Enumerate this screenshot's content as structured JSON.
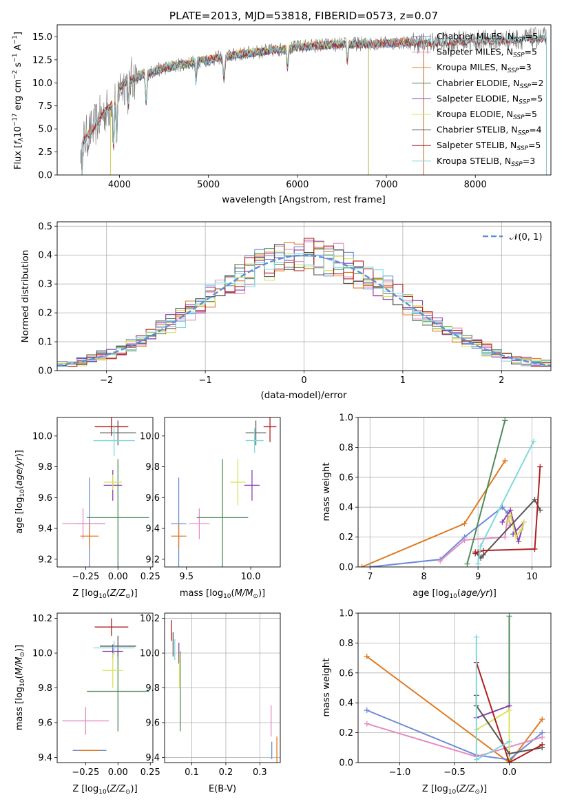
{
  "figure_title": "PLATE=2013, MJD=53818, FIBERID=0573, z=0.07",
  "colors": {
    "Chabrier MILES": "#6a8bd8",
    "Salpeter MILES": "#e58bbf",
    "Kroupa MILES": "#e07a22",
    "Chabrier ELODIE": "#4f8a5a",
    "Salpeter ELODIE": "#8a3fb0",
    "Kroupa ELODIE": "#d8e35a",
    "Chabrier STELIB": "#555555",
    "Salpeter STELIB": "#b01e1e",
    "Kroupa STELIB": "#7fd8dc",
    "data": "#7f7f7f",
    "normal": "#5a8fd6"
  },
  "chart_data": [
    {
      "type": "line",
      "title": "PLATE=2013, MJD=53818, FIBERID=0573, z=0.07",
      "xlabel": "wavelength [Angstrom, rest frame]",
      "ylabel": "Flux [f_λ 10^-17 erg cm^-2 s^-1 A^-1]",
      "xlim": [
        3300,
        8850
      ],
      "ylim": [
        0,
        16.3
      ],
      "xticks": [
        "4000",
        "5000",
        "6000",
        "7000",
        "8000"
      ],
      "yticks": [
        "0.0",
        "2.5",
        "5.0",
        "7.5",
        "10.0",
        "12.5",
        "15.0"
      ],
      "legend_position": "right",
      "series": [
        {
          "name": "Chabrier MILES, N_SSP=5",
          "label_main": "Chabrier MILES, N",
          "label_sub": "SSP",
          "label_tail": "=5",
          "range": [
            3580,
            7420
          ]
        },
        {
          "name": "Salpeter MILES, N_SSP=5",
          "label_main": "Salpeter MILES, N",
          "label_sub": "SSP",
          "label_tail": "=5",
          "range": [
            3580,
            7420
          ]
        },
        {
          "name": "Kroupa MILES, N_SSP=3",
          "label_main": "Kroupa MILES, N",
          "label_sub": "SSP",
          "label_tail": "=3",
          "range": [
            3580,
            7420
          ]
        },
        {
          "name": "Chabrier ELODIE, N_SSP=2",
          "label_main": "Chabrier ELODIE, N",
          "label_sub": "SSP",
          "label_tail": "=2",
          "range": [
            3900,
            6800
          ]
        },
        {
          "name": "Salpeter ELODIE, N_SSP=5",
          "label_main": "Salpeter ELODIE, N",
          "label_sub": "SSP",
          "label_tail": "=5",
          "range": [
            3900,
            6800
          ]
        },
        {
          "name": "Kroupa ELODIE, N_SSP=5",
          "label_main": "Kroupa ELODIE, N",
          "label_sub": "SSP",
          "label_tail": "=5",
          "range": [
            3900,
            6800
          ]
        },
        {
          "name": "Chabrier STELIB, N_SSP=4",
          "label_main": "Chabrier STELIB, N",
          "label_sub": "SSP",
          "label_tail": "=4",
          "range": [
            3580,
            8800
          ]
        },
        {
          "name": "Salpeter STELIB, N_SSP=5",
          "label_main": "Salpeter STELIB, N",
          "label_sub": "SSP",
          "label_tail": "=5",
          "range": [
            3580,
            8800
          ]
        },
        {
          "name": "Kroupa STELIB, N_SSP=3",
          "label_main": "Kroupa STELIB, N",
          "label_sub": "SSP",
          "label_tail": "=3",
          "range": [
            3580,
            8800
          ]
        }
      ],
      "continuum_x": [
        3580,
        3700,
        3800,
        3900,
        4000,
        4100,
        4300,
        4500,
        4800,
        5000,
        5200,
        5500,
        5800,
        6000,
        6300,
        6600,
        6900,
        7200,
        7500,
        7800,
        8100,
        8400,
        8800
      ],
      "continuum_y": [
        3.5,
        5.0,
        6.5,
        7.5,
        9.5,
        10.3,
        11.0,
        11.6,
        12.2,
        12.5,
        12.9,
        13.3,
        13.6,
        13.9,
        14.1,
        14.2,
        14.3,
        14.4,
        14.3,
        14.5,
        14.6,
        14.7,
        14.9
      ]
    },
    {
      "type": "line",
      "xlabel": "(data-model)/error",
      "ylabel": "Normed distribution",
      "xlim": [
        -2.5,
        2.5
      ],
      "ylim": [
        0,
        0.515
      ],
      "grid": true,
      "xticks": [
        "−2",
        "−1",
        "0",
        "1",
        "2"
      ],
      "yticks": [
        "0.0",
        "0.1",
        "0.2",
        "0.3",
        "0.4",
        "0.5"
      ],
      "legend_position": "top-right",
      "normal_label": "𝒩(0, 1)",
      "bin_width": 0.1
    },
    {
      "type": "scatter",
      "xlabel": "Z [log10(Z/Z⊙)]",
      "ylabel": "age [log10(age/yr)]",
      "xlim": [
        -0.47,
        0.27
      ],
      "ylim": [
        9.15,
        10.12
      ],
      "xticks": [
        "−0.25",
        "0.00",
        "0.25"
      ],
      "yticks": [
        "9.2",
        "9.4",
        "9.6",
        "9.8",
        "10.0"
      ],
      "points": [
        {
          "series": "Chabrier MILES",
          "x": -0.22,
          "y": 9.43,
          "xerr": 0.12,
          "yerr": 0.3
        },
        {
          "series": "Salpeter MILES",
          "x": -0.27,
          "y": 9.43,
          "xerr": 0.16,
          "yerr": 0.1
        },
        {
          "series": "Kroupa MILES",
          "x": -0.22,
          "y": 9.35,
          "xerr": 0.07,
          "yerr": 0.08
        },
        {
          "series": "Chabrier ELODIE",
          "x": 0.0,
          "y": 9.47,
          "xerr": 0.24,
          "yerr": 0.38
        },
        {
          "series": "Salpeter ELODIE",
          "x": -0.04,
          "y": 9.68,
          "xerr": 0.07,
          "yerr": 0.1
        },
        {
          "series": "Kroupa ELODIE",
          "x": -0.04,
          "y": 9.7,
          "xerr": 0.07,
          "yerr": 0.05
        },
        {
          "series": "Chabrier STELIB",
          "x": 0.0,
          "y": 10.02,
          "xerr": 0.14,
          "yerr": 0.08
        },
        {
          "series": "Salpeter STELIB",
          "x": -0.05,
          "y": 10.06,
          "xerr": 0.13,
          "yerr": 0.06
        },
        {
          "series": "Kroupa STELIB",
          "x": -0.03,
          "y": 9.97,
          "xerr": 0.16,
          "yerr": 0.1
        }
      ]
    },
    {
      "type": "scatter",
      "xlabel": "mass [log10(M/M⊙)]",
      "xlim": [
        9.33,
        10.23
      ],
      "ylim": [
        9.15,
        10.12
      ],
      "xticks": [
        "9.5",
        "10.0"
      ],
      "yticks": [
        "9.2",
        "9.4",
        "9.6",
        "9.8",
        "10.0"
      ],
      "points": [
        {
          "series": "Chabrier MILES",
          "x": 9.44,
          "y": 9.43,
          "xerr": 0.06,
          "yerr": 0.3
        },
        {
          "series": "Salpeter MILES",
          "x": 9.6,
          "y": 9.43,
          "xerr": 0.08,
          "yerr": 0.1
        },
        {
          "series": "Kroupa MILES",
          "x": 9.44,
          "y": 9.35,
          "xerr": 0.06,
          "yerr": 0.08
        },
        {
          "series": "Chabrier ELODIE",
          "x": 9.78,
          "y": 9.47,
          "xerr": 0.2,
          "yerr": 0.38
        },
        {
          "series": "Salpeter ELODIE",
          "x": 10.01,
          "y": 9.68,
          "xerr": 0.06,
          "yerr": 0.1
        },
        {
          "series": "Kroupa ELODIE",
          "x": 9.9,
          "y": 9.7,
          "xerr": 0.06,
          "yerr": 0.15
        },
        {
          "series": "Chabrier STELIB",
          "x": 10.04,
          "y": 10.02,
          "xerr": 0.08,
          "yerr": 0.08
        },
        {
          "series": "Salpeter STELIB",
          "x": 10.15,
          "y": 10.06,
          "xerr": 0.05,
          "yerr": 0.1
        },
        {
          "series": "Kroupa STELIB",
          "x": 10.03,
          "y": 9.97,
          "xerr": 0.07,
          "yerr": 0.08
        }
      ]
    },
    {
      "type": "line",
      "xlabel": "age [log10(age/yr)]",
      "ylabel": "mass weight",
      "xlim": [
        6.78,
        10.35
      ],
      "ylim": [
        0,
        1.0
      ],
      "grid": true,
      "xticks": [
        "7",
        "8",
        "9",
        "10"
      ],
      "yticks": [
        "0.0",
        "0.2",
        "0.4",
        "0.6",
        "0.8",
        "1.0"
      ],
      "series": [
        {
          "name": "Chabrier MILES",
          "x": [
            7.0,
            8.3,
            8.75,
            9.45,
            9.55
          ],
          "y": [
            0.0,
            0.05,
            0.2,
            0.4,
            0.36
          ]
        },
        {
          "name": "Salpeter MILES",
          "x": [
            8.3,
            8.75,
            9.5,
            9.55,
            9.6
          ],
          "y": [
            0.04,
            0.18,
            0.2,
            0.34,
            0.28
          ]
        },
        {
          "name": "Kroupa MILES",
          "x": [
            6.85,
            8.75,
            9.5
          ],
          "y": [
            0.0,
            0.29,
            0.71
          ]
        },
        {
          "name": "Chabrier ELODIE",
          "x": [
            8.8,
            9.5
          ],
          "y": [
            0.02,
            0.98
          ]
        },
        {
          "name": "Salpeter ELODIE",
          "x": [
            9.45,
            9.6,
            9.75,
            9.85,
            9.65
          ],
          "y": [
            0.3,
            0.38,
            0.17,
            0.3,
            0.22
          ]
        },
        {
          "name": "Kroupa ELODIE",
          "x": [
            9.55,
            9.6,
            9.7,
            9.8,
            9.85
          ],
          "y": [
            0.3,
            0.35,
            0.2,
            0.25,
            0.3
          ]
        },
        {
          "name": "Chabrier STELIB",
          "x": [
            8.95,
            9.05,
            9.1,
            10.05,
            10.15
          ],
          "y": [
            0.1,
            0.06,
            0.08,
            0.45,
            0.38
          ]
        },
        {
          "name": "Salpeter STELIB",
          "x": [
            8.95,
            9.0,
            9.1,
            10.05,
            10.15
          ],
          "y": [
            0.09,
            0.1,
            0.11,
            0.12,
            0.67
          ]
        },
        {
          "name": "Kroupa STELIB",
          "x": [
            9.0,
            9.05,
            10.03
          ],
          "y": [
            0.02,
            0.14,
            0.84
          ]
        }
      ]
    },
    {
      "type": "scatter",
      "xlabel": "Z [log10(Z/Z⊙)]",
      "ylabel": "mass [log10(M/M⊙)]",
      "xlim": [
        -0.47,
        0.27
      ],
      "ylim": [
        9.37,
        10.23
      ],
      "xticks": [
        "−0.25",
        "0.00",
        "0.25"
      ],
      "yticks": [
        "9.4",
        "9.6",
        "9.8",
        "10.0",
        "10.2"
      ],
      "points": [
        {
          "series": "Chabrier MILES",
          "x": -0.22,
          "y": 9.44,
          "xerr": 0.13,
          "yerr": 0.0
        },
        {
          "series": "Salpeter MILES",
          "x": -0.25,
          "y": 9.61,
          "xerr": 0.18,
          "yerr": 0.08
        },
        {
          "series": "Kroupa MILES",
          "x": -0.22,
          "y": 9.44,
          "xerr": 0.08,
          "yerr": 0.0
        },
        {
          "series": "Chabrier ELODIE",
          "x": 0.0,
          "y": 9.78,
          "xerr": 0.24,
          "yerr": 0.23
        },
        {
          "series": "Salpeter ELODIE",
          "x": -0.04,
          "y": 10.01,
          "xerr": 0.08,
          "yerr": 0.04
        },
        {
          "series": "Kroupa ELODIE",
          "x": -0.04,
          "y": 9.9,
          "xerr": 0.08,
          "yerr": 0.1
        },
        {
          "series": "Chabrier STELIB",
          "x": 0.0,
          "y": 10.04,
          "xerr": 0.14,
          "yerr": 0.06
        },
        {
          "series": "Salpeter STELIB",
          "x": -0.05,
          "y": 10.15,
          "xerr": 0.13,
          "yerr": 0.05
        },
        {
          "series": "Kroupa STELIB",
          "x": -0.03,
          "y": 10.03,
          "xerr": 0.16,
          "yerr": 0.04
        }
      ]
    },
    {
      "type": "scatter",
      "xlabel": "E(B-V)",
      "xlim": [
        0.02,
        0.36
      ],
      "ylim": [
        9.37,
        10.23
      ],
      "grid": true,
      "xticks": [
        "0.1",
        "0.2",
        "0.3"
      ],
      "yticks": [
        "9.4",
        "9.6",
        "9.8",
        "10.0",
        "10.2"
      ],
      "points": [
        {
          "series": "Chabrier MILES",
          "x": 0.335,
          "y": 9.44,
          "xerr": 0.0,
          "yerr": 0.05
        },
        {
          "series": "Salpeter MILES",
          "x": 0.333,
          "y": 9.61,
          "xerr": 0.0,
          "yerr": 0.09
        },
        {
          "series": "Kroupa MILES",
          "x": 0.35,
          "y": 9.44,
          "xerr": 0.0,
          "yerr": 0.08
        },
        {
          "series": "Chabrier ELODIE",
          "x": 0.066,
          "y": 9.78,
          "xerr": 0.0,
          "yerr": 0.23
        },
        {
          "series": "Salpeter ELODIE",
          "x": 0.062,
          "y": 10.0,
          "xerr": 0.0,
          "yerr": 0.06
        },
        {
          "series": "Kroupa ELODIE",
          "x": 0.064,
          "y": 9.9,
          "xerr": 0.0,
          "yerr": 0.1
        },
        {
          "series": "Chabrier STELIB",
          "x": 0.045,
          "y": 10.05,
          "xerr": 0.0,
          "yerr": 0.07
        },
        {
          "series": "Salpeter STELIB",
          "x": 0.04,
          "y": 10.13,
          "xerr": 0.0,
          "yerr": 0.06
        },
        {
          "series": "Kroupa STELIB",
          "x": 0.05,
          "y": 10.02,
          "xerr": 0.0,
          "yerr": 0.06
        }
      ]
    },
    {
      "type": "line",
      "xlabel": "Z [log10(Z/Z⊙)]",
      "ylabel": "mass weight",
      "xlim": [
        -1.38,
        0.38
      ],
      "ylim": [
        0,
        1.0
      ],
      "grid": true,
      "xticks": [
        "−1.0",
        "−0.5",
        "0.0"
      ],
      "yticks": [
        "0.0",
        "0.2",
        "0.4",
        "0.6",
        "0.8",
        "1.0"
      ],
      "series": [
        {
          "name": "Chabrier MILES",
          "x": [
            -1.3,
            -0.3,
            0.0,
            0.3
          ],
          "y": [
            0.35,
            0.05,
            0.02,
            0.2
          ]
        },
        {
          "name": "Salpeter MILES",
          "x": [
            -1.3,
            -0.3,
            0.3
          ],
          "y": [
            0.26,
            0.04,
            0.17
          ]
        },
        {
          "name": "Kroupa MILES",
          "x": [
            -1.3,
            0.0,
            0.3
          ],
          "y": [
            0.71,
            0.0,
            0.29
          ]
        },
        {
          "name": "Chabrier ELODIE",
          "x": [
            0.0,
            0.0
          ],
          "y": [
            0.02,
            0.98
          ]
        },
        {
          "name": "Salpeter ELODIE",
          "x": [
            -0.3,
            0.0,
            0.0
          ],
          "y": [
            0.3,
            0.38,
            0.0
          ]
        },
        {
          "name": "Kroupa ELODIE",
          "x": [
            -0.3,
            0.0,
            0.0
          ],
          "y": [
            0.22,
            0.35,
            0.0
          ]
        },
        {
          "name": "Chabrier STELIB",
          "x": [
            -0.3,
            -0.3,
            0.0,
            0.3
          ],
          "y": [
            0.45,
            0.38,
            0.06,
            0.1
          ]
        },
        {
          "name": "Salpeter STELIB",
          "x": [
            -0.3,
            0.0,
            0.3
          ],
          "y": [
            0.67,
            0.0,
            0.12
          ]
        },
        {
          "name": "Kroupa STELIB",
          "x": [
            -0.3,
            -0.3,
            0.0
          ],
          "y": [
            0.84,
            0.02,
            0.14
          ]
        }
      ]
    }
  ]
}
